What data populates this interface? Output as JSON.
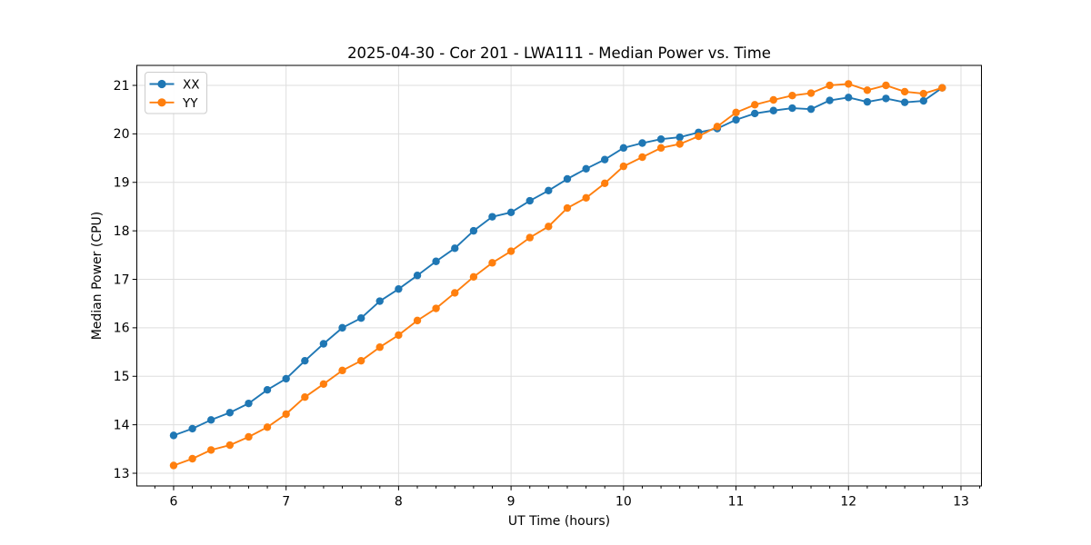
{
  "chart_data": {
    "type": "line",
    "title": "2025-04-30 - Cor 201 - LWA111 - Median Power vs. Time",
    "xlabel": "UT Time (hours)",
    "ylabel": "Median Power (CPU)",
    "xlim": [
      5.673,
      13.182
    ],
    "ylim": [
      12.738,
      21.412
    ],
    "xticks": [
      6,
      7,
      8,
      9,
      10,
      11,
      12,
      13
    ],
    "yticks": [
      13,
      14,
      15,
      16,
      17,
      18,
      19,
      20,
      21
    ],
    "x_minor_step": 0.166667,
    "grid": true,
    "legend_position": "upper left",
    "marker": "circle",
    "x": [
      6.0,
      6.167,
      6.333,
      6.5,
      6.667,
      6.833,
      7.0,
      7.167,
      7.333,
      7.5,
      7.667,
      7.833,
      8.0,
      8.167,
      8.333,
      8.5,
      8.667,
      8.833,
      9.0,
      9.167,
      9.333,
      9.5,
      9.667,
      9.833,
      10.0,
      10.167,
      10.333,
      10.5,
      10.667,
      10.833,
      11.0,
      11.167,
      11.333,
      11.5,
      11.667,
      11.833,
      12.0,
      12.167,
      12.333,
      12.5,
      12.667,
      12.833
    ],
    "series": [
      {
        "name": "XX",
        "color": "#1f77b4",
        "values": [
          13.78,
          13.92,
          14.1,
          14.25,
          14.44,
          14.72,
          14.95,
          15.32,
          15.67,
          16.0,
          16.2,
          16.55,
          16.8,
          17.08,
          17.37,
          17.64,
          18.0,
          18.29,
          18.38,
          18.62,
          18.83,
          19.07,
          19.28,
          19.47,
          19.71,
          19.81,
          19.89,
          19.93,
          20.03,
          20.11,
          20.29,
          20.42,
          20.48,
          20.53,
          20.51,
          20.69,
          20.75,
          20.66,
          20.73,
          20.65,
          20.68,
          20.95
        ]
      },
      {
        "name": "YY",
        "color": "#ff7f0e",
        "values": [
          13.16,
          13.3,
          13.48,
          13.58,
          13.75,
          13.95,
          14.22,
          14.57,
          14.84,
          15.12,
          15.32,
          15.6,
          15.85,
          16.15,
          16.4,
          16.72,
          17.05,
          17.34,
          17.58,
          17.86,
          18.09,
          18.47,
          18.68,
          18.98,
          19.33,
          19.52,
          19.71,
          19.79,
          19.95,
          20.15,
          20.44,
          20.6,
          20.7,
          20.79,
          20.84,
          21.0,
          21.03,
          20.9,
          21.0,
          20.87,
          20.83,
          20.95
        ]
      }
    ]
  }
}
